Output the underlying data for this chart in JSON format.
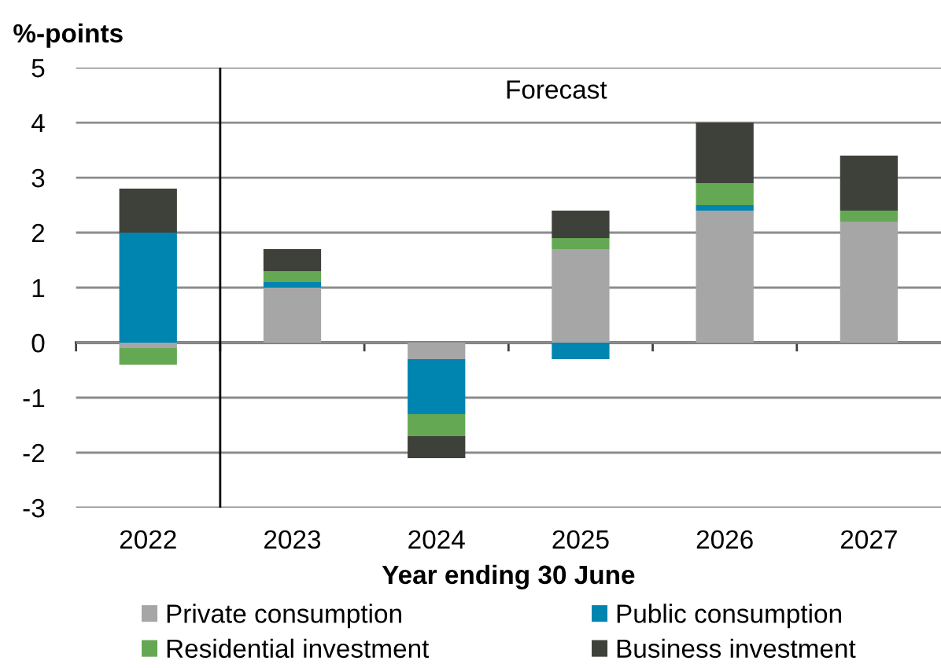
{
  "chart_data": {
    "type": "bar",
    "stacked": true,
    "ylabel": "%-points",
    "xlabel": "Year ending 30 June",
    "x": [
      2022,
      2023,
      2024,
      2025,
      2026,
      2027
    ],
    "series": [
      {
        "name": "Private consumption",
        "color": "#a6a6a6",
        "values": [
          -0.1,
          1.0,
          -0.3,
          1.7,
          2.4,
          2.2
        ]
      },
      {
        "name": "Public consumption",
        "color": "#0084b0",
        "values": [
          2.0,
          0.1,
          -1.0,
          -0.3,
          0.1,
          null
        ]
      },
      {
        "name": "Residential investment",
        "color": "#65a854",
        "values": [
          -0.3,
          0.2,
          -0.4,
          0.2,
          0.4,
          0.2
        ]
      },
      {
        "name": "Business investment",
        "color": "#3e4139",
        "values": [
          0.8,
          0.4,
          -0.4,
          0.5,
          1.1,
          1.0
        ]
      }
    ],
    "xlim": [
      2021.5,
      2027.5
    ],
    "xticks": [
      {
        "value": 2021.5,
        "label": null
      },
      2022,
      {
        "value": 2022.5,
        "label": null
      },
      2023,
      {
        "value": 2023.5,
        "label": null
      },
      2024,
      {
        "value": 2024.5,
        "label": null
      },
      2025,
      {
        "value": 2025.5,
        "label": null
      },
      2026,
      {
        "value": 2026.5,
        "label": null
      },
      2027
    ],
    "ylim": [
      -3,
      5
    ],
    "yticks": [
      -3,
      -2,
      -1,
      0,
      1,
      2,
      3,
      4,
      5
    ],
    "grid": "y",
    "legend": "bottom",
    "ref_lines": [
      {
        "axis": "x",
        "value": 2022.5,
        "color": "#000000"
      }
    ],
    "annotations": [
      "Forecast"
    ]
  }
}
